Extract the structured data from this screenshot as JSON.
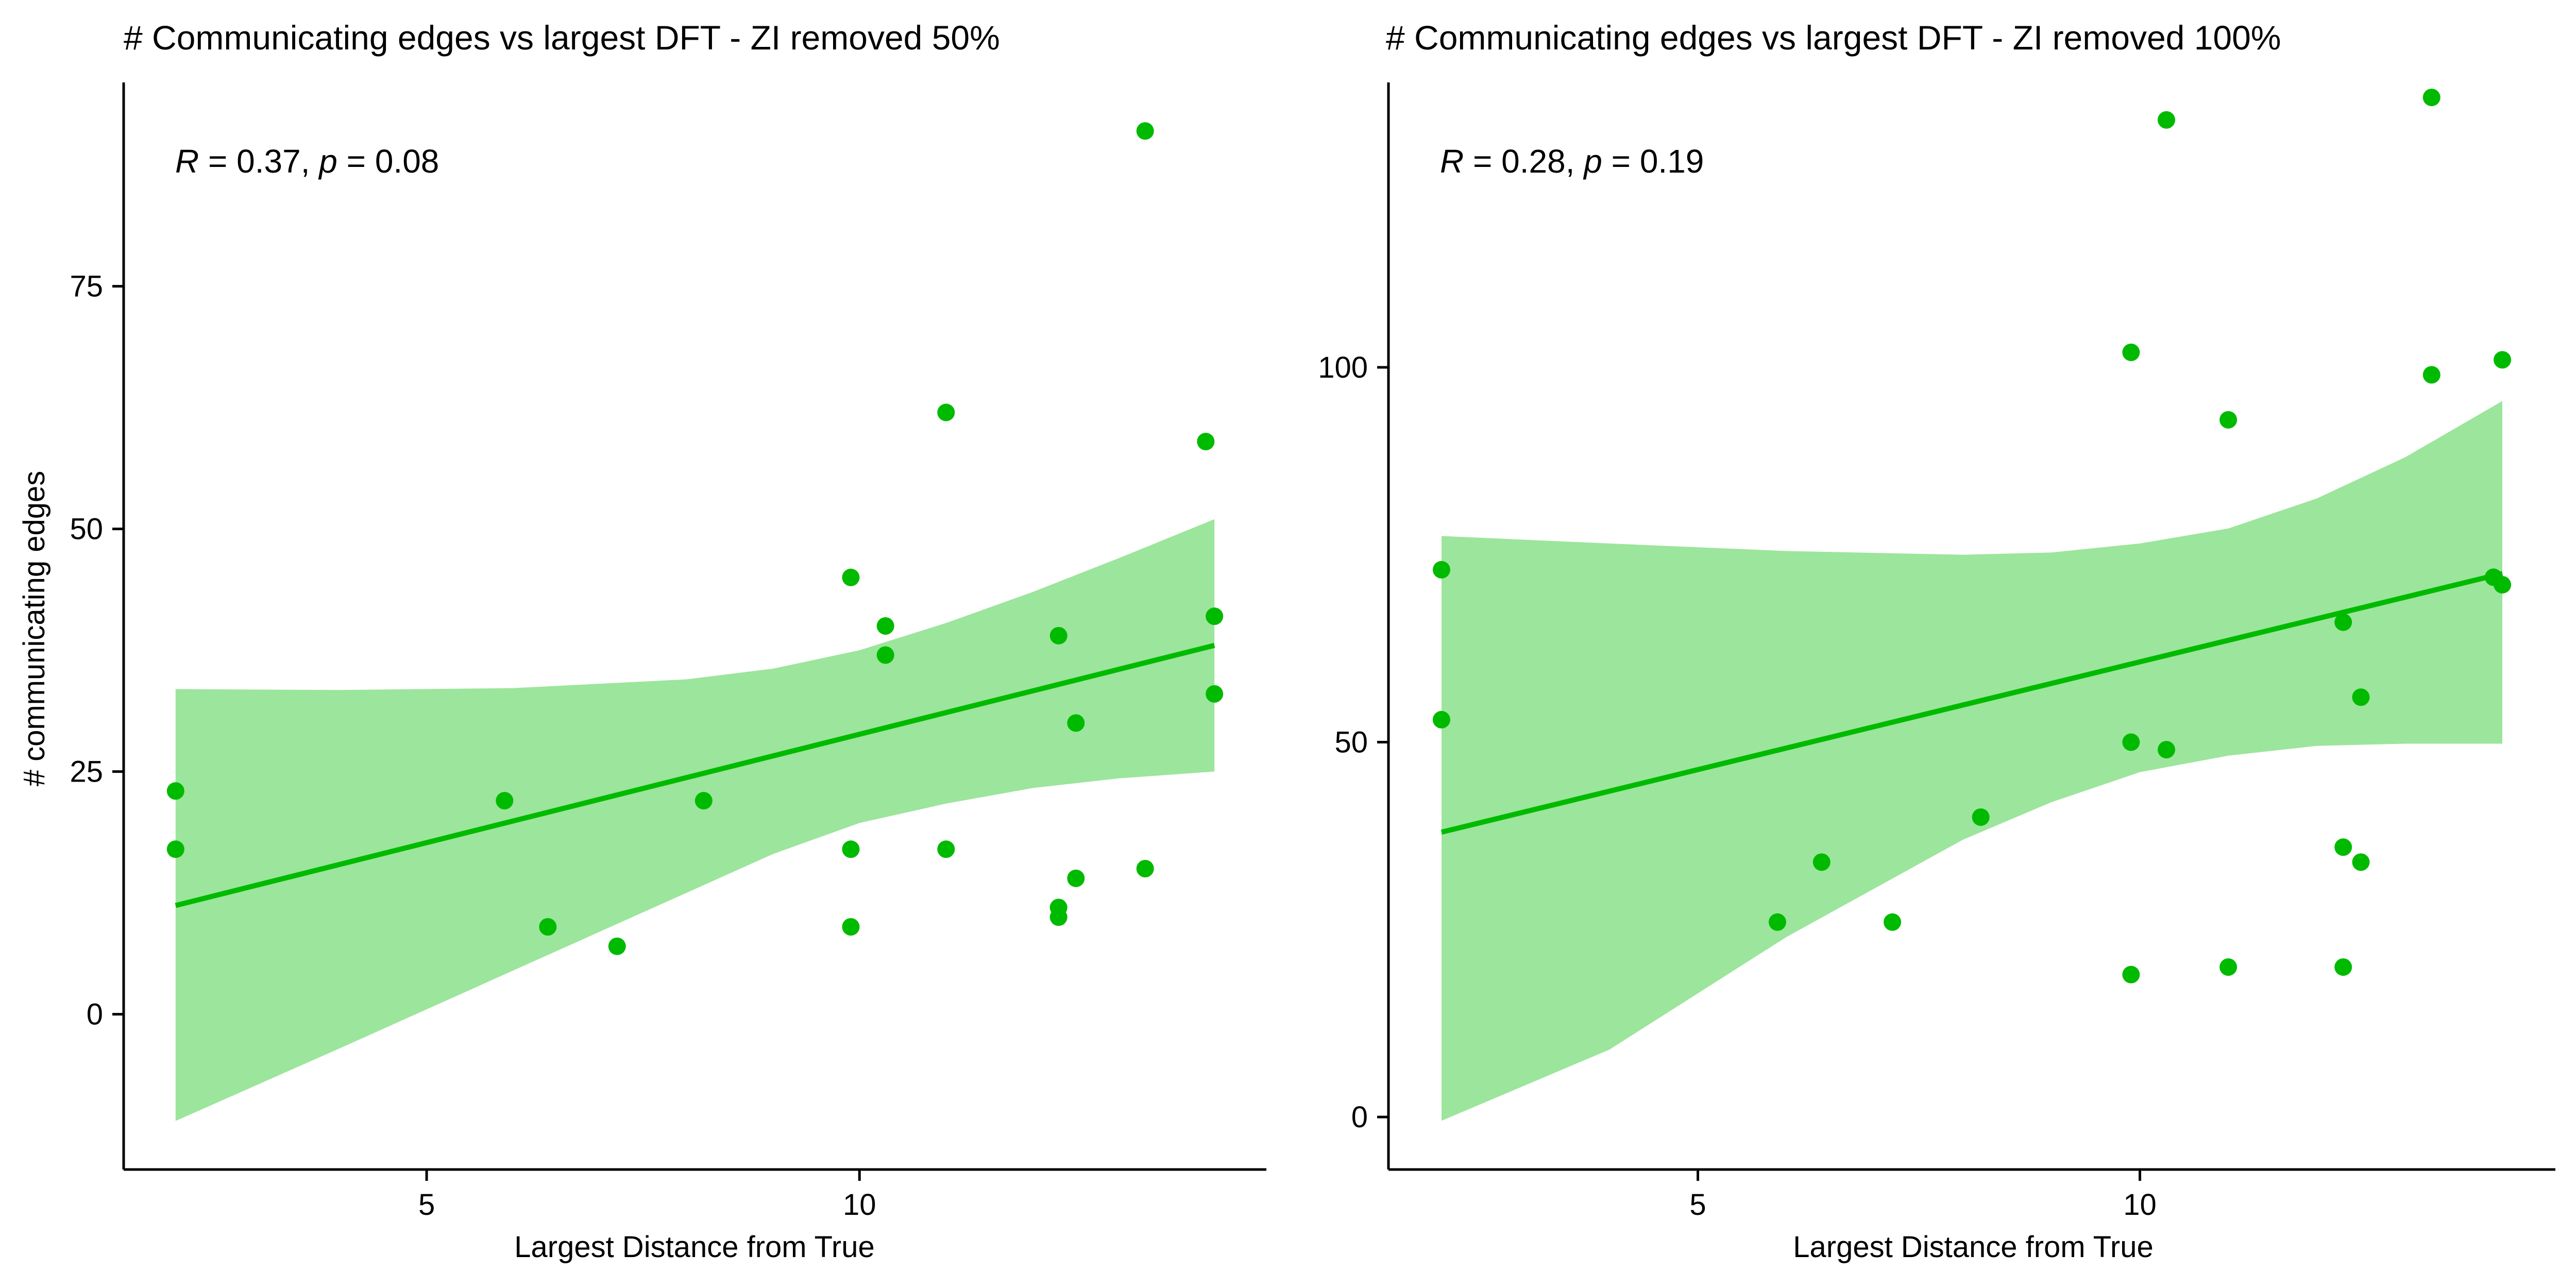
{
  "colors": {
    "point": "#00BA00",
    "line": "#00BA00",
    "band": "#9CE59C",
    "axis": "#000000"
  },
  "chart_data": [
    {
      "type": "scatter",
      "title": "# Communicating edges vs largest DFT - ZI removed 50%",
      "xlabel": "Largest Distance from True",
      "ylabel": "# communicating edges",
      "xlim": [
        1.5,
        14.7
      ],
      "ylim": [
        -16,
        96
      ],
      "xticks": [
        5,
        10
      ],
      "yticks": [
        0,
        25,
        50,
        75
      ],
      "stat": {
        "R_label": "R",
        "R_value": " = 0.37, ",
        "p_label": "p",
        "p_value": " = 0.08"
      },
      "points": [
        {
          "x": 2.1,
          "y": 23
        },
        {
          "x": 2.1,
          "y": 17
        },
        {
          "x": 5.9,
          "y": 22
        },
        {
          "x": 6.4,
          "y": 9
        },
        {
          "x": 7.2,
          "y": 7
        },
        {
          "x": 8.2,
          "y": 22
        },
        {
          "x": 9.9,
          "y": 45
        },
        {
          "x": 9.9,
          "y": 17
        },
        {
          "x": 9.9,
          "y": 9
        },
        {
          "x": 10.3,
          "y": 40
        },
        {
          "x": 10.3,
          "y": 37
        },
        {
          "x": 11.0,
          "y": 62
        },
        {
          "x": 11.0,
          "y": 17
        },
        {
          "x": 12.3,
          "y": 39
        },
        {
          "x": 12.3,
          "y": 11
        },
        {
          "x": 12.3,
          "y": 10
        },
        {
          "x": 12.5,
          "y": 30
        },
        {
          "x": 12.5,
          "y": 14
        },
        {
          "x": 13.3,
          "y": 91
        },
        {
          "x": 13.3,
          "y": 15
        },
        {
          "x": 14.0,
          "y": 59
        },
        {
          "x": 14.1,
          "y": 41
        },
        {
          "x": 14.1,
          "y": 33
        }
      ],
      "fit_line": [
        {
          "x": 2.1,
          "y": 11.2
        },
        {
          "x": 14.1,
          "y": 38
        }
      ],
      "band_upper": [
        {
          "x": 2.1,
          "y": 33.5
        },
        {
          "x": 4.0,
          "y": 33.4
        },
        {
          "x": 6.0,
          "y": 33.6
        },
        {
          "x": 8.0,
          "y": 34.5
        },
        {
          "x": 9.0,
          "y": 35.6
        },
        {
          "x": 10.0,
          "y": 37.5
        },
        {
          "x": 11.0,
          "y": 40.3
        },
        {
          "x": 12.0,
          "y": 43.5
        },
        {
          "x": 13.0,
          "y": 47.0
        },
        {
          "x": 14.1,
          "y": 51.0
        }
      ],
      "band_lower": [
        {
          "x": 2.1,
          "y": -11
        },
        {
          "x": 4.0,
          "y": -3.5
        },
        {
          "x": 6.0,
          "y": 4.5
        },
        {
          "x": 8.0,
          "y": 12.5
        },
        {
          "x": 9.0,
          "y": 16.5
        },
        {
          "x": 10.0,
          "y": 19.7
        },
        {
          "x": 11.0,
          "y": 21.7
        },
        {
          "x": 12.0,
          "y": 23.3
        },
        {
          "x": 13.0,
          "y": 24.3
        },
        {
          "x": 14.1,
          "y": 25.0
        }
      ]
    },
    {
      "type": "scatter",
      "title": "# Communicating edges vs largest DFT - ZI removed 100%",
      "xlabel": "Largest Distance from True",
      "ylabel": "",
      "xlim": [
        1.5,
        14.7
      ],
      "ylim": [
        -7,
        138
      ],
      "xticks": [
        5,
        10
      ],
      "yticks": [
        0,
        50,
        100
      ],
      "stat": {
        "R_label": "R",
        "R_value": " = 0.28, ",
        "p_label": "p",
        "p_value": " = 0.19"
      },
      "points": [
        {
          "x": 2.1,
          "y": 73
        },
        {
          "x": 2.1,
          "y": 53
        },
        {
          "x": 5.9,
          "y": 26
        },
        {
          "x": 6.4,
          "y": 34
        },
        {
          "x": 7.2,
          "y": 26
        },
        {
          "x": 8.2,
          "y": 40
        },
        {
          "x": 9.9,
          "y": 102
        },
        {
          "x": 9.9,
          "y": 50
        },
        {
          "x": 9.9,
          "y": 19
        },
        {
          "x": 10.3,
          "y": 133
        },
        {
          "x": 10.3,
          "y": 49
        },
        {
          "x": 11.0,
          "y": 93
        },
        {
          "x": 11.0,
          "y": 20
        },
        {
          "x": 12.3,
          "y": 66
        },
        {
          "x": 12.3,
          "y": 36
        },
        {
          "x": 12.3,
          "y": 20
        },
        {
          "x": 12.5,
          "y": 56
        },
        {
          "x": 12.5,
          "y": 34
        },
        {
          "x": 13.3,
          "y": 136
        },
        {
          "x": 13.3,
          "y": 99
        },
        {
          "x": 14.0,
          "y": 72
        },
        {
          "x": 14.1,
          "y": 101
        },
        {
          "x": 14.1,
          "y": 71
        }
      ],
      "fit_line": [
        {
          "x": 2.1,
          "y": 38
        },
        {
          "x": 14.1,
          "y": 72.5
        }
      ],
      "band_upper": [
        {
          "x": 2.1,
          "y": 77.5
        },
        {
          "x": 4.0,
          "y": 76.5
        },
        {
          "x": 6.0,
          "y": 75.5
        },
        {
          "x": 8.0,
          "y": 75.0
        },
        {
          "x": 9.0,
          "y": 75.3
        },
        {
          "x": 10.0,
          "y": 76.5
        },
        {
          "x": 11.0,
          "y": 78.5
        },
        {
          "x": 12.0,
          "y": 82.5
        },
        {
          "x": 13.0,
          "y": 88.0
        },
        {
          "x": 14.1,
          "y": 95.5
        }
      ],
      "band_lower": [
        {
          "x": 2.1,
          "y": -0.5
        },
        {
          "x": 4.0,
          "y": 9.0
        },
        {
          "x": 6.0,
          "y": 24.0
        },
        {
          "x": 8.0,
          "y": 37.0
        },
        {
          "x": 9.0,
          "y": 42.0
        },
        {
          "x": 10.0,
          "y": 46.0
        },
        {
          "x": 11.0,
          "y": 48.2
        },
        {
          "x": 12.0,
          "y": 49.5
        },
        {
          "x": 13.0,
          "y": 49.8
        },
        {
          "x": 14.1,
          "y": 49.8
        }
      ]
    }
  ]
}
